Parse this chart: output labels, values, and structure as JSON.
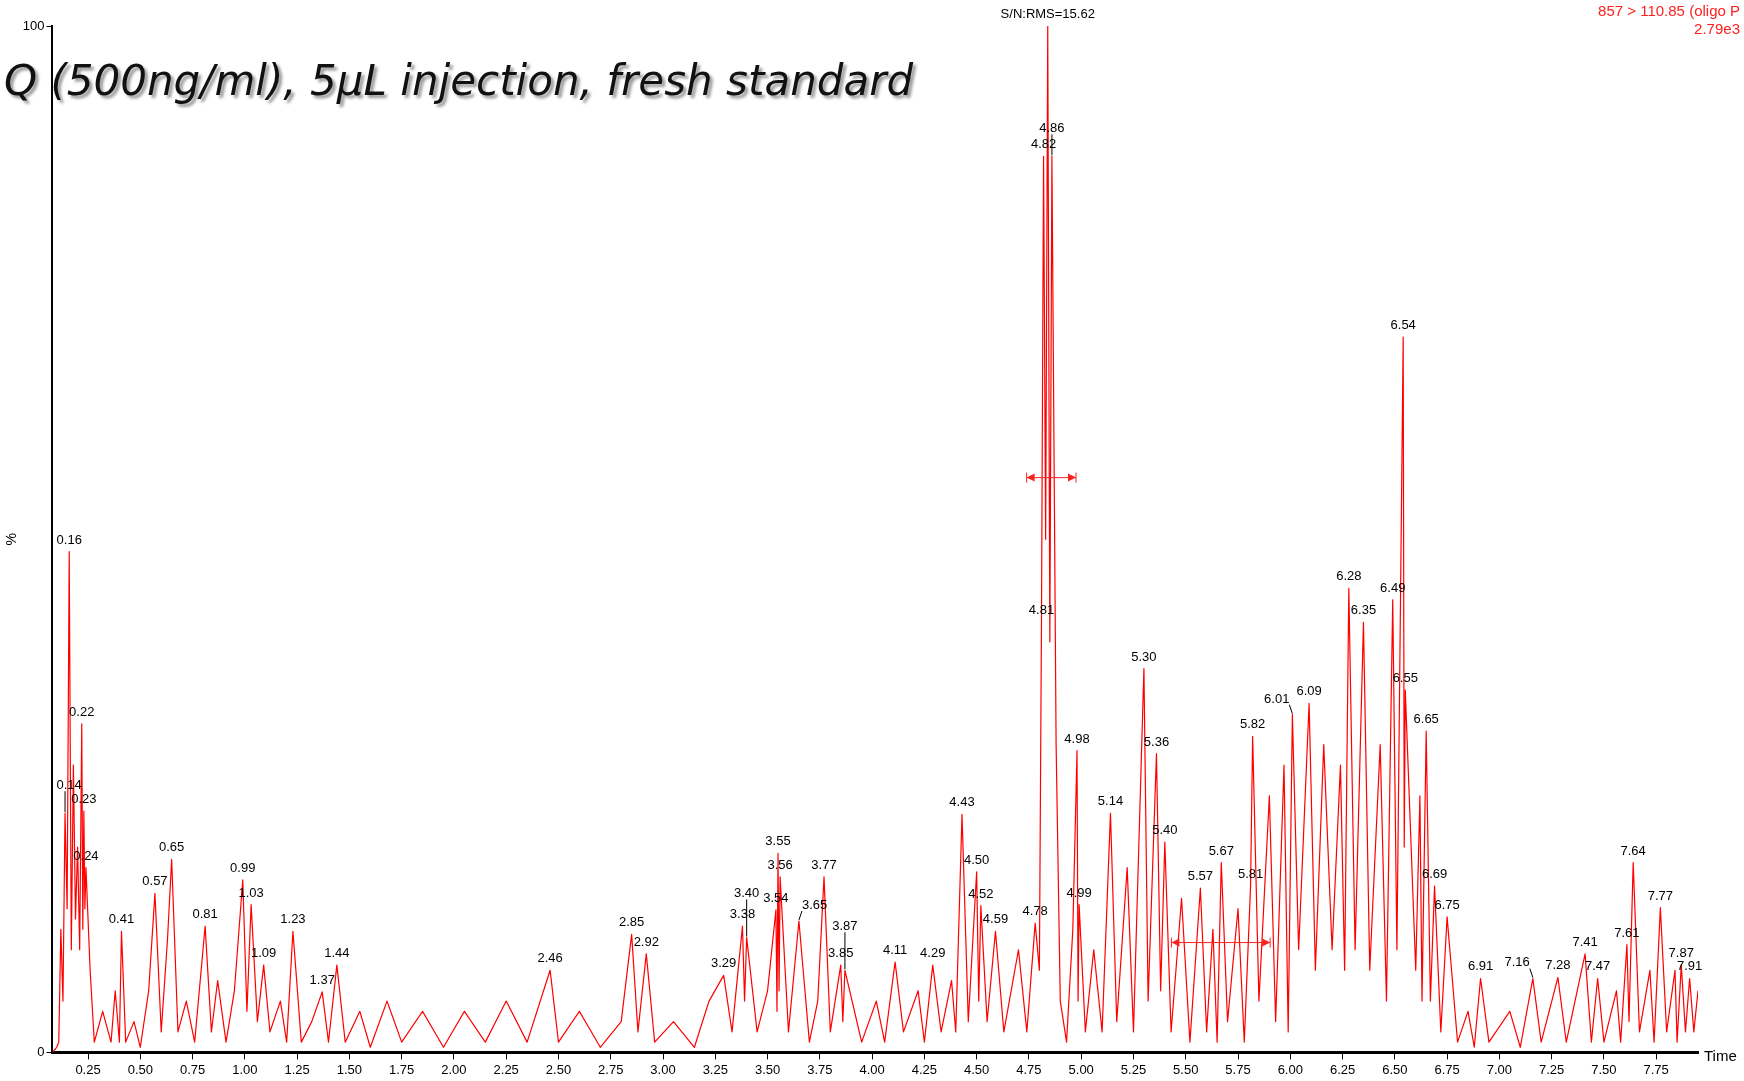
{
  "chart_data": {
    "type": "line",
    "title": "Q (500ng/ml), 5µL injection, fresh standard",
    "xlabel": "Time",
    "ylabel": "%",
    "x": [
      0.08,
      0.1,
      0.11,
      0.12,
      0.13,
      0.14,
      0.15,
      0.16,
      0.17,
      0.18,
      0.19,
      0.2,
      0.21,
      0.22,
      0.225,
      0.23,
      0.235,
      0.24,
      0.26,
      0.28,
      0.32,
      0.36,
      0.38,
      0.4,
      0.41,
      0.43,
      0.47,
      0.5,
      0.54,
      0.57,
      0.6,
      0.63,
      0.65,
      0.68,
      0.72,
      0.76,
      0.81,
      0.84,
      0.87,
      0.91,
      0.95,
      0.99,
      1.01,
      1.03,
      1.06,
      1.09,
      1.12,
      1.17,
      1.2,
      1.23,
      1.27,
      1.32,
      1.37,
      1.4,
      1.44,
      1.48,
      1.55,
      1.6,
      1.68,
      1.75,
      1.85,
      1.95,
      2.05,
      2.15,
      2.25,
      2.35,
      2.46,
      2.5,
      2.6,
      2.7,
      2.8,
      2.85,
      2.88,
      2.92,
      2.96,
      3.05,
      3.15,
      3.22,
      3.29,
      3.33,
      3.38,
      3.39,
      3.4,
      3.45,
      3.5,
      3.54,
      3.545,
      3.55,
      3.555,
      3.56,
      3.6,
      3.65,
      3.7,
      3.74,
      3.77,
      3.8,
      3.85,
      3.86,
      3.87,
      3.95,
      4.02,
      4.06,
      4.11,
      4.15,
      4.22,
      4.25,
      4.29,
      4.33,
      4.38,
      4.4,
      4.43,
      4.46,
      4.5,
      4.51,
      4.52,
      4.55,
      4.59,
      4.63,
      4.7,
      4.74,
      4.78,
      4.8,
      4.81,
      4.82,
      4.83,
      4.84,
      4.85,
      4.86,
      4.88,
      4.9,
      4.93,
      4.96,
      4.98,
      4.985,
      4.99,
      5.02,
      5.06,
      5.1,
      5.14,
      5.17,
      5.22,
      5.25,
      5.3,
      5.32,
      5.36,
      5.38,
      5.4,
      5.43,
      5.48,
      5.52,
      5.57,
      5.6,
      5.63,
      5.65,
      5.67,
      5.7,
      5.75,
      5.78,
      5.81,
      5.82,
      5.85,
      5.9,
      5.93,
      5.97,
      5.99,
      6.01,
      6.04,
      6.09,
      6.12,
      6.16,
      6.2,
      6.24,
      6.26,
      6.28,
      6.31,
      6.35,
      6.38,
      6.43,
      6.46,
      6.49,
      6.51,
      6.54,
      6.545,
      6.55,
      6.6,
      6.62,
      6.63,
      6.65,
      6.67,
      6.69,
      6.72,
      6.75,
      6.8,
      6.85,
      6.88,
      6.91,
      6.95,
      7.05,
      7.1,
      7.16,
      7.2,
      7.28,
      7.32,
      7.41,
      7.44,
      7.47,
      7.5,
      7.56,
      7.58,
      7.61,
      7.62,
      7.64,
      7.67,
      7.72,
      7.74,
      7.77,
      7.8,
      7.84,
      7.85,
      7.87,
      7.89,
      7.91,
      7.93,
      7.95
    ],
    "series": [
      {
        "color": "#ff0000",
        "values": [
          0,
          0.5,
          1,
          12,
          5,
          23.3,
          14,
          48.8,
          10,
          28,
          13,
          20,
          10,
          32,
          12,
          23.5,
          14,
          18,
          8,
          1,
          4,
          1,
          6,
          1,
          11.8,
          1,
          3,
          0.5,
          6,
          15.5,
          2,
          11,
          18.8,
          2,
          5,
          1,
          12.3,
          2,
          7,
          1,
          6,
          16.8,
          4,
          14.4,
          3,
          8.5,
          2,
          5,
          1,
          11.8,
          1,
          3,
          5.9,
          1,
          8.5,
          1,
          4,
          0.5,
          5,
          1,
          4,
          0.5,
          4,
          1,
          5,
          1,
          8,
          1,
          4,
          0.5,
          3,
          11.5,
          2,
          9.6,
          1,
          3,
          0.5,
          5,
          7.5,
          2,
          12.3,
          5,
          11.2,
          2,
          6,
          13.9,
          4,
          19.4,
          6,
          17.1,
          2,
          12.8,
          1,
          5,
          17.1,
          2,
          8.5,
          3,
          8,
          1,
          5,
          1,
          8.8,
          2,
          6,
          1,
          8.5,
          2,
          7,
          2,
          23.2,
          3,
          17.6,
          5,
          14.3,
          3,
          11.8,
          2,
          10,
          2,
          12.6,
          8,
          41.9,
          87.3,
          50,
          100,
          40,
          87.3,
          30,
          5,
          1,
          12,
          29.4,
          5,
          14.4,
          2,
          10,
          2,
          23.3,
          3,
          18,
          2,
          37.4,
          5,
          29.1,
          6,
          20.5,
          2,
          15,
          1,
          16,
          2,
          12,
          1,
          18.5,
          3,
          14,
          1,
          16.2,
          30.8,
          5,
          25,
          3,
          28,
          2,
          32.9,
          10,
          34,
          8,
          30,
          10,
          28,
          8,
          45.2,
          10,
          41.9,
          8,
          30,
          5,
          44.1,
          10,
          69.7,
          20,
          35.3,
          8,
          25,
          5,
          31.3,
          5,
          16.2,
          2,
          13.2,
          1,
          4,
          0.5,
          7.2,
          1,
          4,
          0.5,
          7.2,
          1,
          7.3,
          1,
          9.6,
          1,
          7.2,
          1,
          6,
          1,
          10.5,
          3,
          18.5,
          2,
          8,
          1,
          14.1,
          2,
          8,
          1,
          8.5,
          2,
          7.2,
          2,
          6
        ]
      }
    ],
    "xlim": [
      0.08,
      7.95
    ],
    "xticks": [
      {
        "value": 0.25,
        "label": "0.25"
      },
      {
        "value": 0.5,
        "label": "0.50"
      },
      {
        "value": 0.75,
        "label": "0.75"
      },
      {
        "value": 1,
        "label": "1.00"
      },
      {
        "value": 1.25,
        "label": "1.25"
      },
      {
        "value": 1.5,
        "label": "1.50"
      },
      {
        "value": 1.75,
        "label": "1.75"
      },
      {
        "value": 2,
        "label": "2.00"
      },
      {
        "value": 2.25,
        "label": "2.25"
      },
      {
        "value": 2.5,
        "label": "2.50"
      },
      {
        "value": 2.75,
        "label": "2.75"
      },
      {
        "value": 3,
        "label": "3.00"
      },
      {
        "value": 3.25,
        "label": "3.25"
      },
      {
        "value": 3.5,
        "label": "3.50"
      },
      {
        "value": 3.75,
        "label": "3.75"
      },
      {
        "value": 4,
        "label": "4.00"
      },
      {
        "value": 4.25,
        "label": "4.25"
      },
      {
        "value": 4.5,
        "label": "4.50"
      },
      {
        "value": 4.75,
        "label": "4.75"
      },
      {
        "value": 5,
        "label": "5.00"
      },
      {
        "value": 5.25,
        "label": "5.25"
      },
      {
        "value": 5.5,
        "label": "5.50"
      },
      {
        "value": 5.75,
        "label": "5.75"
      },
      {
        "value": 6,
        "label": "6.00"
      },
      {
        "value": 6.25,
        "label": "6.25"
      },
      {
        "value": 6.5,
        "label": "6.50"
      },
      {
        "value": 6.75,
        "label": "6.75"
      },
      {
        "value": 7,
        "label": "7.00"
      },
      {
        "value": 7.25,
        "label": "7.25"
      },
      {
        "value": 7.5,
        "label": "7.50"
      },
      {
        "value": 7.75,
        "label": "7.75"
      }
    ],
    "ylim": [
      0,
      100
    ],
    "yticks": [
      0,
      100
    ],
    "grid": false,
    "legend": false,
    "marker": "none",
    "line_style": "solid",
    "annotations": [
      "857 > 110.85 (oligo P",
      "2.79e3",
      {
        "text": "S/N:RMS=15.62",
        "x": 4.84,
        "y": 100
      },
      {
        "text": "0.14",
        "x": 0.14,
        "y": 23.3
      },
      {
        "text": "0.16",
        "x": 0.16,
        "y": 48.8
      },
      {
        "text": "0.22",
        "x": 0.22,
        "y": 32
      },
      {
        "text": "0.23",
        "x": 0.23,
        "y": 23.5
      },
      {
        "text": "0.24",
        "x": 0.24,
        "y": 18
      },
      {
        "text": "0.41",
        "x": 0.41,
        "y": 11.8
      },
      {
        "text": "0.57",
        "x": 0.57,
        "y": 15.5
      },
      {
        "text": "0.65",
        "x": 0.65,
        "y": 18.8
      },
      {
        "text": "0.81",
        "x": 0.81,
        "y": 12.3
      },
      {
        "text": "0.99",
        "x": 0.99,
        "y": 16.8
      },
      {
        "text": "1.03",
        "x": 1.03,
        "y": 14.4
      },
      {
        "text": "1.09",
        "x": 1.09,
        "y": 8.5
      },
      {
        "text": "1.23",
        "x": 1.23,
        "y": 11.8
      },
      {
        "text": "1.37",
        "x": 1.37,
        "y": 5.9
      },
      {
        "text": "1.44",
        "x": 1.44,
        "y": 8.5
      },
      {
        "text": "2.46",
        "x": 2.46,
        "y": 8
      },
      {
        "text": "2.85",
        "x": 2.85,
        "y": 11.5
      },
      {
        "text": "2.92",
        "x": 2.92,
        "y": 9.6
      },
      {
        "text": "3.29",
        "x": 3.29,
        "y": 7.5
      },
      {
        "text": "3.38",
        "x": 3.38,
        "y": 12.3
      },
      {
        "text": "3.40",
        "x": 3.4,
        "y": 11.2
      },
      {
        "text": "3.54",
        "x": 3.54,
        "y": 13.9
      },
      {
        "text": "3.55",
        "x": 3.55,
        "y": 19.4
      },
      {
        "text": "3.56",
        "x": 3.56,
        "y": 17.1
      },
      {
        "text": "3.65",
        "x": 3.65,
        "y": 12.8
      },
      {
        "text": "3.77",
        "x": 3.77,
        "y": 17.1
      },
      {
        "text": "3.85",
        "x": 3.85,
        "y": 8.5
      },
      {
        "text": "3.87",
        "x": 3.87,
        "y": 8
      },
      {
        "text": "4.11",
        "x": 4.11,
        "y": 8.8
      },
      {
        "text": "4.29",
        "x": 4.29,
        "y": 8.5
      },
      {
        "text": "4.43",
        "x": 4.43,
        "y": 23.2
      },
      {
        "text": "4.50",
        "x": 4.5,
        "y": 17.6
      },
      {
        "text": "4.52",
        "x": 4.52,
        "y": 14.3
      },
      {
        "text": "4.59",
        "x": 4.59,
        "y": 11.8
      },
      {
        "text": "4.78",
        "x": 4.78,
        "y": 12.6
      },
      {
        "text": "4.81",
        "x": 4.81,
        "y": 41.9
      },
      {
        "text": "4.82",
        "x": 4.82,
        "y": 87.3
      },
      {
        "text": "4.86",
        "x": 4.86,
        "y": 87.3
      },
      {
        "text": "4.98",
        "x": 4.98,
        "y": 29.4
      },
      {
        "text": "4.99",
        "x": 4.99,
        "y": 14.4
      },
      {
        "text": "5.14",
        "x": 5.14,
        "y": 23.3
      },
      {
        "text": "5.30",
        "x": 5.3,
        "y": 37.4
      },
      {
        "text": "5.36",
        "x": 5.36,
        "y": 29.1
      },
      {
        "text": "5.40",
        "x": 5.4,
        "y": 20.5
      },
      {
        "text": "5.57",
        "x": 5.57,
        "y": 16
      },
      {
        "text": "5.67",
        "x": 5.67,
        "y": 18.5
      },
      {
        "text": "5.81",
        "x": 5.81,
        "y": 16.2
      },
      {
        "text": "5.82",
        "x": 5.82,
        "y": 30.8
      },
      {
        "text": "6.01",
        "x": 6.01,
        "y": 32.9
      },
      {
        "text": "6.09",
        "x": 6.09,
        "y": 34
      },
      {
        "text": "6.28",
        "x": 6.28,
        "y": 45.2
      },
      {
        "text": "6.35",
        "x": 6.35,
        "y": 41.9
      },
      {
        "text": "6.49",
        "x": 6.49,
        "y": 44.1
      },
      {
        "text": "6.54",
        "x": 6.54,
        "y": 69.7
      },
      {
        "text": "6.55",
        "x": 6.55,
        "y": 35.3
      },
      {
        "text": "6.65",
        "x": 6.65,
        "y": 31.3
      },
      {
        "text": "6.69",
        "x": 6.69,
        "y": 16.2
      },
      {
        "text": "6.75",
        "x": 6.75,
        "y": 13.2
      },
      {
        "text": "6.91",
        "x": 6.91,
        "y": 7.2
      },
      {
        "text": "7.16",
        "x": 7.16,
        "y": 7.2
      },
      {
        "text": "7.28",
        "x": 7.28,
        "y": 7.3
      },
      {
        "text": "7.41",
        "x": 7.41,
        "y": 9.6
      },
      {
        "text": "7.47",
        "x": 7.47,
        "y": 7.2
      },
      {
        "text": "7.61",
        "x": 7.61,
        "y": 10.5
      },
      {
        "text": "7.64",
        "x": 7.64,
        "y": 18.5
      },
      {
        "text": "7.77",
        "x": 7.77,
        "y": 14.1
      },
      {
        "text": "7.87",
        "x": 7.87,
        "y": 8.5
      },
      {
        "text": "7.91",
        "x": 7.91,
        "y": 7.2
      }
    ]
  }
}
